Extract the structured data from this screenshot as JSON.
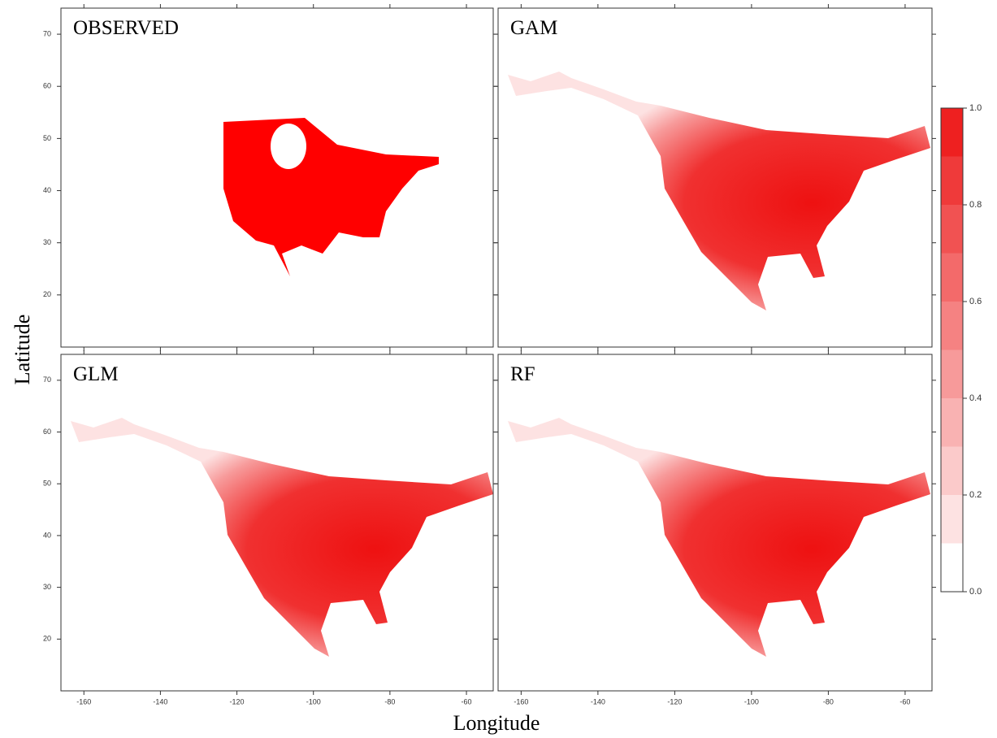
{
  "chart_data": {
    "type": "map",
    "panels": [
      {
        "title": "OBSERVED"
      },
      {
        "title": "GAM"
      },
      {
        "title": "GLM"
      },
      {
        "title": "RF"
      }
    ],
    "xlabel": "Longitude",
    "ylabel": "Latitude",
    "xlim": [
      -166,
      -53
    ],
    "ylim": [
      10,
      75
    ],
    "xticks": [
      -160,
      -140,
      -120,
      -100,
      -80,
      -60
    ],
    "yticks": [
      20,
      30,
      40,
      50,
      60,
      70
    ],
    "colorbar": {
      "lim": [
        0,
        1
      ],
      "levels": [
        0,
        0.1,
        0.2,
        0.3,
        0.4,
        0.5,
        0.6,
        0.7,
        0.8,
        0.9,
        1.0
      ],
      "colors": [
        "#ffffff",
        "#fde2e2",
        "#fbcaca",
        "#f9b2b2",
        "#f79a9a",
        "#f58282",
        "#f36a6a",
        "#f15252",
        "#ef3a3a",
        "#ee2020"
      ],
      "ticks": [
        {
          "value": 0,
          "label": "0.0"
        },
        0.2,
        0.4,
        0.6,
        0.8,
        {
          "value": 1,
          "label": "1.0"
        }
      ]
    }
  }
}
